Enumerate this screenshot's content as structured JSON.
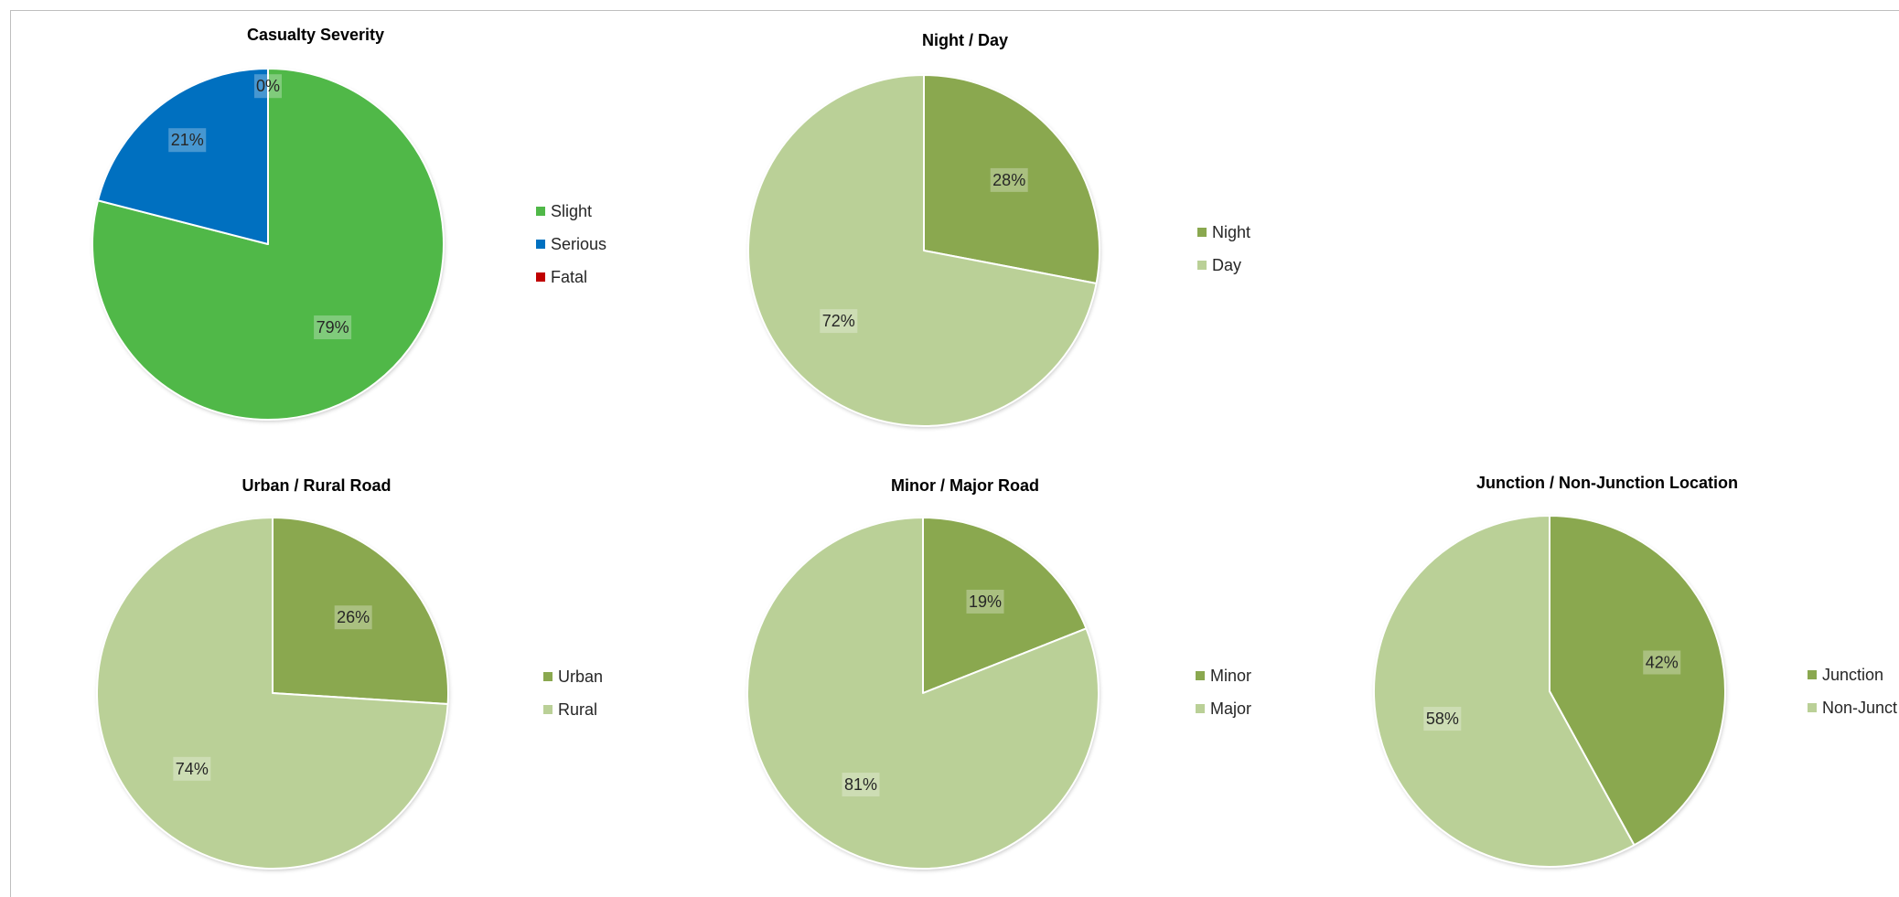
{
  "chart_data": [
    {
      "type": "pie",
      "title": "Casualty Severity",
      "categories": [
        "Slight",
        "Serious",
        "Fatal"
      ],
      "values": [
        79,
        21,
        0
      ],
      "labels": [
        "79%",
        "21%",
        "0%"
      ],
      "colors": [
        "#50b848",
        "#0070c0",
        "#c00000"
      ],
      "legend": "right"
    },
    {
      "type": "pie",
      "title": "Night / Day",
      "categories": [
        "Night",
        "Day"
      ],
      "values": [
        28,
        72
      ],
      "labels": [
        "28%",
        "72%"
      ],
      "colors": [
        "#8aa84f",
        "#bad097"
      ],
      "legend": "right"
    },
    {
      "type": "pie",
      "title": "Urban / Rural Road",
      "categories": [
        "Urban",
        "Rural"
      ],
      "values": [
        26,
        74
      ],
      "labels": [
        "26%",
        "74%"
      ],
      "colors": [
        "#8aa84f",
        "#bad097"
      ],
      "legend": "right"
    },
    {
      "type": "pie",
      "title": "Minor / Major  Road",
      "categories": [
        "Minor",
        "Major"
      ],
      "values": [
        19,
        81
      ],
      "labels": [
        "19%",
        "81%"
      ],
      "colors": [
        "#8aa84f",
        "#bad097"
      ],
      "legend": "right"
    },
    {
      "type": "pie",
      "title": "Junction / Non-Junction Location",
      "categories": [
        "Junction",
        "Non-Junct"
      ],
      "values": [
        42,
        58
      ],
      "labels": [
        "42%",
        "58%"
      ],
      "colors": [
        "#8aa84f",
        "#bad097"
      ],
      "legend": "right"
    }
  ]
}
